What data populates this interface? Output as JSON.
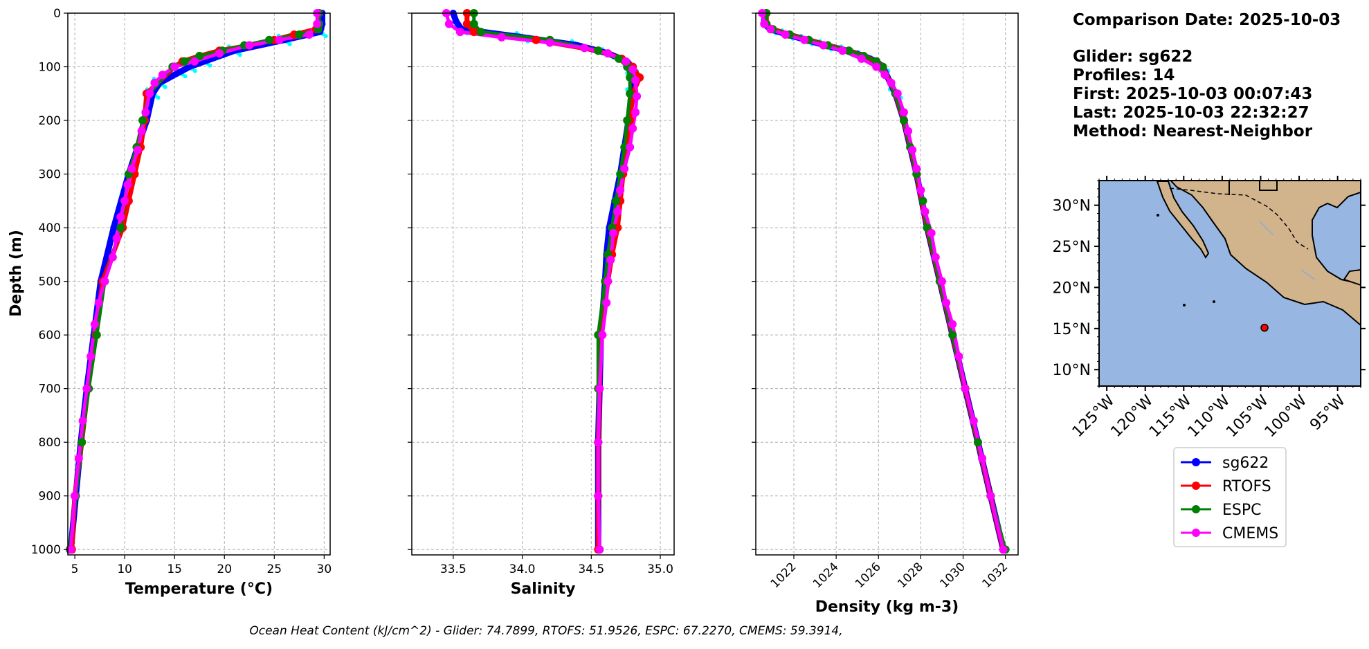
{
  "colors": {
    "glider": "#0000ff",
    "rtofs": "#ff0000",
    "espc": "#008000",
    "cmems": "#ff00ff",
    "glider_scatter": "#00ffff",
    "ocean": "#97b6e1",
    "land": "#d2b48c"
  },
  "info": {
    "comparison_date": "Comparison Date: 2025-10-03",
    "glider": "Glider: sg622",
    "profiles": "Profiles: 14",
    "first": "First: 2025-10-03 00:07:43",
    "last": "Last: 2025-10-03 22:32:27",
    "method": "Method: Nearest-Neighbor"
  },
  "footer": "Ocean Heat Content (kJ/cm^2) - Glider: 74.7899,  RTOFS: 51.9526,  ESPC: 67.2270,  CMEMS: 59.3914,",
  "legend": [
    "sg622",
    "RTOFS",
    "ESPC",
    "CMEMS"
  ],
  "ylabel": "Depth (m)",
  "depth_ticks": [
    "0",
    "100",
    "200",
    "300",
    "400",
    "500",
    "600",
    "700",
    "800",
    "900",
    "1000"
  ],
  "map": {
    "lat_labels": [
      "30°N",
      "25°N",
      "20°N",
      "15°N",
      "10°N"
    ],
    "lat_values": [
      30,
      25,
      20,
      15,
      10
    ],
    "lon_labels": [
      "125°W",
      "120°W",
      "115°W",
      "110°W",
      "105°W",
      "100°W",
      "95°W"
    ],
    "lon_values": [
      -125,
      -120,
      -115,
      -110,
      -105,
      -100,
      -95
    ],
    "lon_range": [
      -126,
      -92
    ],
    "lat_range": [
      8,
      33
    ],
    "glider_location": {
      "lon": -104.5,
      "lat": 15.1
    }
  },
  "chart_data": [
    {
      "type": "line",
      "xlabel": "Temperature (°C)",
      "xlim": [
        4.3,
        30.6
      ],
      "xticks": [
        5,
        10,
        15,
        20,
        25,
        30
      ],
      "xtick_labels": [
        "5",
        "10",
        "15",
        "20",
        "25",
        "30"
      ],
      "ylim": [
        1010,
        0
      ],
      "series": [
        {
          "name": "sg622",
          "depth": [
            0,
            20,
            35,
            50,
            70,
            90,
            100,
            110,
            130,
            150,
            200,
            300,
            400,
            500,
            600,
            700,
            800,
            900,
            1000
          ],
          "values": [
            29.8,
            29.8,
            29.6,
            26,
            21,
            18,
            16.5,
            15.5,
            13.5,
            12.8,
            12.2,
            10.4,
            8.9,
            7.6,
            6.9,
            6.2,
            5.6,
            5.1,
            4.6
          ]
        },
        {
          "name": "RTOFS",
          "depth": [
            0,
            20,
            30,
            40,
            50,
            60,
            70,
            80,
            90,
            100,
            150,
            200,
            250,
            300,
            350,
            400,
            500,
            600,
            700,
            800,
            900,
            1000
          ],
          "values": [
            29.4,
            29.4,
            29.2,
            27,
            25,
            22.5,
            19.5,
            17.5,
            15.8,
            15,
            12.2,
            12,
            11.6,
            11,
            10.4,
            9.8,
            7.8,
            7.1,
            6.3,
            5.7,
            5.0,
            4.7
          ]
        },
        {
          "name": "ESPC",
          "depth": [
            0,
            20,
            30,
            40,
            50,
            60,
            70,
            80,
            90,
            100,
            150,
            200,
            250,
            300,
            350,
            400,
            500,
            600,
            700,
            800,
            900,
            1000
          ],
          "values": [
            29.5,
            29.5,
            29.4,
            27.5,
            24.5,
            22,
            19.8,
            17.5,
            16,
            14.8,
            12.5,
            11.8,
            11.2,
            10.4,
            10,
            9.6,
            8,
            7.2,
            6.4,
            5.7,
            5.1,
            4.5
          ]
        },
        {
          "name": "CMEMS",
          "depth": [
            0,
            20,
            40,
            50,
            60,
            75,
            90,
            100,
            115,
            130,
            150,
            185,
            220,
            255,
            290,
            320,
            350,
            380,
            420,
            455,
            500,
            540,
            580,
            640,
            700,
            760,
            830,
            900,
            1000
          ],
          "values": [
            29.3,
            29.3,
            28.5,
            25.5,
            22.5,
            19.5,
            17,
            15,
            13.8,
            13,
            12.5,
            12.1,
            11.7,
            11.3,
            10.7,
            10.3,
            10,
            9.6,
            9.2,
            8.8,
            8,
            7.4,
            7.0,
            6.6,
            6.2,
            5.8,
            5.4,
            5.0,
            4.6
          ]
        }
      ]
    },
    {
      "type": "line",
      "xlabel": "Salinity",
      "xlim": [
        33.2,
        35.1
      ],
      "xticks": [
        33.5,
        34.0,
        34.5,
        35.0
      ],
      "xtick_labels": [
        "33.5",
        "34.0",
        "34.5",
        "35.0"
      ],
      "ylim": [
        1010,
        0
      ],
      "series": [
        {
          "name": "sg622",
          "depth": [
            0,
            15,
            30,
            45,
            60,
            75,
            90,
            100,
            120,
            150,
            200,
            250,
            300,
            350,
            400,
            450,
            500,
            600,
            700,
            800,
            900,
            1000
          ],
          "values": [
            33.5,
            33.52,
            33.56,
            34.0,
            34.4,
            34.62,
            34.76,
            34.79,
            34.8,
            34.8,
            34.77,
            34.74,
            34.71,
            34.67,
            34.63,
            34.61,
            34.6,
            34.57,
            34.56,
            34.55,
            34.55,
            34.55
          ]
        },
        {
          "name": "RTOFS",
          "depth": [
            0,
            20,
            35,
            50,
            70,
            85,
            100,
            120,
            150,
            200,
            250,
            300,
            350,
            400,
            450,
            500,
            600,
            700,
            800,
            900,
            1000
          ],
          "values": [
            33.6,
            33.6,
            33.65,
            34.1,
            34.55,
            34.72,
            34.8,
            34.85,
            34.8,
            34.78,
            34.75,
            34.73,
            34.71,
            34.69,
            34.65,
            34.62,
            34.57,
            34.56,
            34.55,
            34.55,
            34.55
          ]
        },
        {
          "name": "ESPC",
          "depth": [
            0,
            20,
            35,
            50,
            70,
            85,
            100,
            120,
            150,
            200,
            250,
            300,
            350,
            400,
            450,
            500,
            600,
            700,
            800,
            900,
            1000
          ],
          "values": [
            33.65,
            33.65,
            33.7,
            34.2,
            34.55,
            34.7,
            34.76,
            34.78,
            34.78,
            34.76,
            34.74,
            34.71,
            34.68,
            34.65,
            34.62,
            34.6,
            34.55,
            34.55,
            34.55,
            34.55,
            34.56
          ]
        },
        {
          "name": "CMEMS",
          "depth": [
            0,
            20,
            35,
            45,
            55,
            65,
            75,
            90,
            105,
            125,
            155,
            185,
            215,
            250,
            290,
            330,
            370,
            410,
            460,
            500,
            540,
            600,
            700,
            800,
            900,
            1000
          ],
          "values": [
            33.45,
            33.47,
            33.55,
            33.85,
            34.2,
            34.45,
            34.62,
            34.75,
            34.8,
            34.82,
            34.83,
            34.82,
            34.8,
            34.78,
            34.74,
            34.71,
            34.69,
            34.66,
            34.64,
            34.62,
            34.61,
            34.58,
            34.56,
            34.55,
            34.55,
            34.56
          ]
        }
      ]
    },
    {
      "type": "line",
      "xlabel": "Density (kg m-3)",
      "xlim": [
        1020.2,
        1032.6
      ],
      "xticks": [
        1022,
        1024,
        1026,
        1028,
        1030,
        1032
      ],
      "xtick_labels": [
        "1022",
        "1024",
        "1026",
        "1028",
        "1030",
        "1032"
      ],
      "ylim": [
        1010,
        0
      ],
      "series": [
        {
          "name": "sg622",
          "depth": [
            0,
            20,
            30,
            40,
            50,
            60,
            70,
            80,
            90,
            100,
            150,
            200,
            300,
            400,
            500,
            600,
            700,
            800,
            900,
            1000
          ],
          "values": [
            1020.6,
            1020.6,
            1020.9,
            1021.7,
            1022.6,
            1023.5,
            1024.5,
            1025.3,
            1025.9,
            1026.2,
            1026.8,
            1027.2,
            1027.8,
            1028.3,
            1028.9,
            1029.5,
            1030.1,
            1030.7,
            1031.3,
            1031.9
          ]
        },
        {
          "name": "RTOFS",
          "depth": [
            0,
            20,
            30,
            40,
            50,
            60,
            70,
            80,
            90,
            100,
            150,
            200,
            300,
            400,
            500,
            600,
            700,
            800,
            900,
            1000
          ],
          "values": [
            1020.7,
            1020.7,
            1021.0,
            1021.8,
            1022.7,
            1023.6,
            1024.6,
            1025.3,
            1025.9,
            1026.2,
            1026.8,
            1027.2,
            1027.8,
            1028.3,
            1028.9,
            1029.5,
            1030.1,
            1030.7,
            1031.3,
            1031.9
          ]
        },
        {
          "name": "ESPC",
          "depth": [
            0,
            20,
            30,
            40,
            50,
            60,
            70,
            80,
            90,
            100,
            150,
            200,
            250,
            300,
            350,
            400,
            500,
            600,
            700,
            800,
            900,
            1000
          ],
          "values": [
            1020.7,
            1020.7,
            1021.0,
            1021.8,
            1022.7,
            1023.6,
            1024.6,
            1025.3,
            1025.9,
            1026.2,
            1026.8,
            1027.2,
            1027.5,
            1027.8,
            1028.1,
            1028.3,
            1028.9,
            1029.5,
            1030.1,
            1030.7,
            1031.3,
            1032.0
          ]
        },
        {
          "name": "CMEMS",
          "depth": [
            0,
            20,
            30,
            40,
            50,
            60,
            70,
            85,
            100,
            115,
            130,
            150,
            185,
            220,
            255,
            290,
            330,
            370,
            410,
            455,
            500,
            540,
            580,
            640,
            700,
            760,
            830,
            900,
            1000
          ],
          "values": [
            1020.5,
            1020.6,
            1020.9,
            1021.6,
            1022.5,
            1023.4,
            1024.3,
            1025.2,
            1025.9,
            1026.3,
            1026.6,
            1026.9,
            1027.2,
            1027.4,
            1027.6,
            1027.8,
            1028.0,
            1028.2,
            1028.5,
            1028.7,
            1029.0,
            1029.2,
            1029.5,
            1029.8,
            1030.1,
            1030.5,
            1030.9,
            1031.3,
            1031.9
          ]
        }
      ]
    }
  ]
}
